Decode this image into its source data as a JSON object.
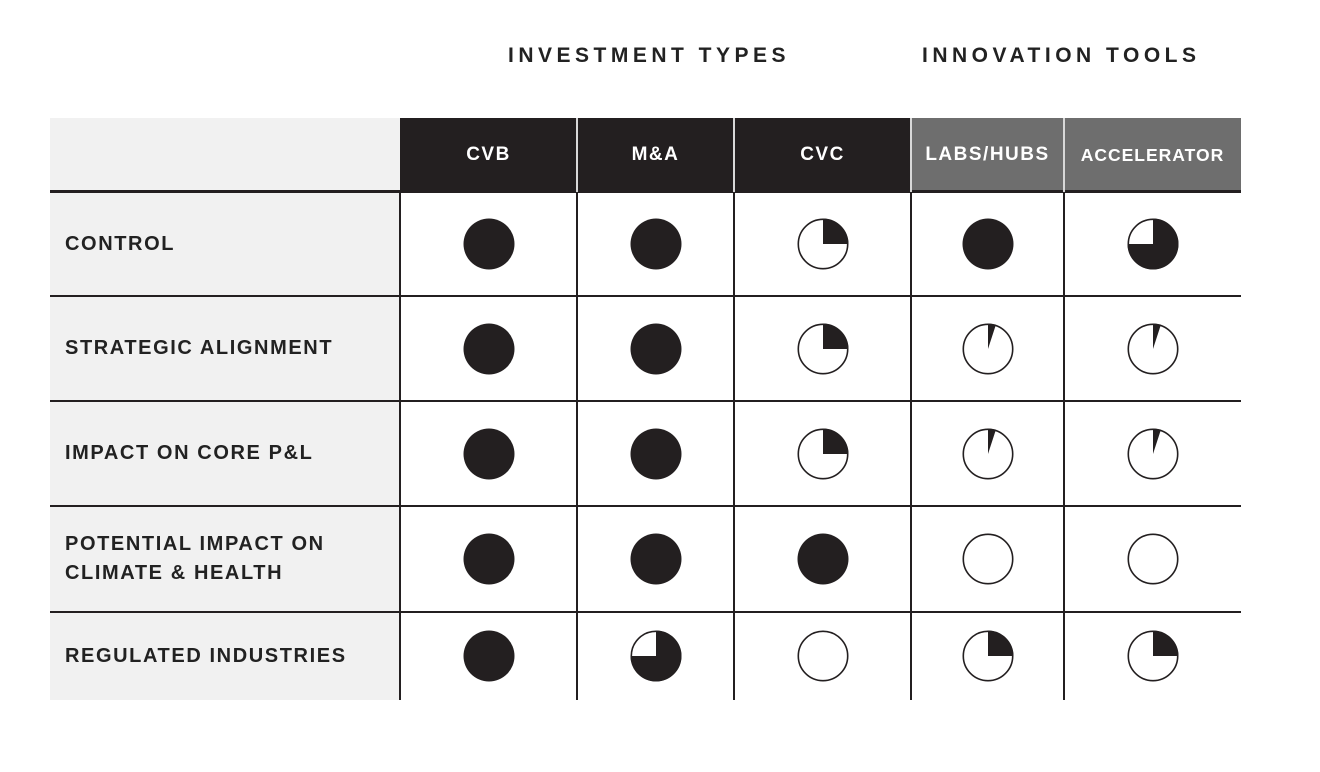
{
  "groups": [
    {
      "label": "INVESTMENT TYPES"
    },
    {
      "label": "INNOVATION TOOLS"
    }
  ],
  "columns": [
    {
      "label": "CVB",
      "group": "INVESTMENT TYPES"
    },
    {
      "label": "M&A",
      "group": "INVESTMENT TYPES"
    },
    {
      "label": "CVC",
      "group": "INVESTMENT TYPES"
    },
    {
      "label": "LABS/HUBS",
      "group": "INNOVATION TOOLS"
    },
    {
      "label": "ACCELERATOR",
      "group": "INNOVATION TOOLS"
    }
  ],
  "rows": [
    {
      "label": "CONTROL",
      "ratings": [
        1,
        1,
        0.25,
        1,
        0.75
      ]
    },
    {
      "label": "STRATEGIC ALIGNMENT",
      "ratings": [
        1,
        1,
        0.25,
        0.05,
        0.05
      ]
    },
    {
      "label": "IMPACT ON CORE P&L",
      "ratings": [
        1,
        1,
        0.25,
        0.05,
        0.05
      ]
    },
    {
      "label": "POTENTIAL IMPACT ON\nCLIMATE & HEALTH",
      "ratings": [
        1,
        1,
        1,
        0,
        0
      ]
    },
    {
      "label": "REGULATED INDUSTRIES",
      "ratings": [
        1,
        0.75,
        0,
        0.25,
        0.25
      ]
    }
  ],
  "colors": {
    "dark": "#231f20",
    "header_dark": "#231f20",
    "header_grey": "#6e6e6e",
    "label_bg": "#f1f1f1"
  },
  "icon": "harvey-ball-icon"
}
